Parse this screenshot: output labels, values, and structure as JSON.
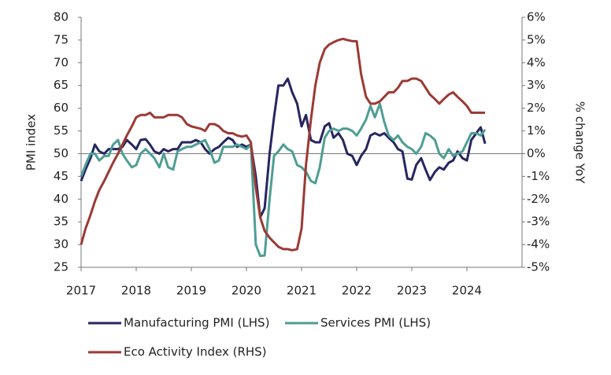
{
  "chart_data": {
    "type": "line",
    "y_label": "PMI index",
    "y2_label": "% change YoY",
    "x": [
      2017.0,
      2017.08,
      2017.17,
      2017.25,
      2017.33,
      2017.42,
      2017.5,
      2017.58,
      2017.67,
      2017.75,
      2017.83,
      2017.92,
      2018.0,
      2018.08,
      2018.17,
      2018.25,
      2018.33,
      2018.42,
      2018.5,
      2018.58,
      2018.67,
      2018.75,
      2018.83,
      2018.92,
      2019.0,
      2019.08,
      2019.17,
      2019.25,
      2019.33,
      2019.42,
      2019.5,
      2019.58,
      2019.67,
      2019.75,
      2019.83,
      2019.92,
      2020.0,
      2020.08,
      2020.17,
      2020.25,
      2020.33,
      2020.42,
      2020.5,
      2020.58,
      2020.67,
      2020.75,
      2020.83,
      2020.92,
      2021.0,
      2021.08,
      2021.17,
      2021.25,
      2021.33,
      2021.42,
      2021.5,
      2021.58,
      2021.67,
      2021.75,
      2021.83,
      2021.92,
      2022.0,
      2022.08,
      2022.17,
      2022.25,
      2022.33,
      2022.42,
      2022.5,
      2022.58,
      2022.67,
      2022.75,
      2022.83,
      2022.92,
      2023.0,
      2023.08,
      2023.17,
      2023.25,
      2023.33,
      2023.42,
      2023.5,
      2023.58,
      2023.67,
      2023.75,
      2023.83,
      2023.92,
      2024.0,
      2024.08,
      2024.17,
      2024.25,
      2024.33
    ],
    "series": [
      {
        "name": "Manufacturing PMI (LHS)",
        "color": "#262660",
        "axis": "y",
        "values": [
          44,
          46.5,
          49,
          52,
          50.5,
          50,
          51,
          51,
          51,
          51.5,
          53,
          52,
          51,
          53,
          53.2,
          52,
          50.5,
          50,
          51,
          50.5,
          51,
          51,
          52.5,
          52.5,
          52.5,
          53,
          52.5,
          51,
          50,
          51,
          51.5,
          52.5,
          53.5,
          53,
          51.5,
          52,
          51.5,
          52,
          45,
          36,
          38,
          50,
          58,
          65,
          65,
          66.5,
          63.5,
          61,
          56,
          58.5,
          53,
          52.5,
          52.5,
          56,
          56.7,
          53.5,
          54.5,
          53,
          50,
          49.5,
          47.5,
          49.5,
          51,
          54,
          54.5,
          54,
          54.5,
          53.5,
          52.5,
          51,
          50.5,
          44.5,
          44.3,
          47.5,
          49,
          46.5,
          44.2,
          46,
          47,
          46.5,
          48,
          48.5,
          50.5,
          49,
          48.5,
          53,
          54.5,
          55.8,
          52.2
        ]
      },
      {
        "name": "Services PMI (LHS)",
        "color": "#4e9e94",
        "axis": "y",
        "values": [
          45,
          47.5,
          50,
          50,
          48.5,
          49.5,
          49.5,
          52,
          53,
          50,
          48.5,
          47,
          47.5,
          50,
          51,
          50,
          49,
          47,
          50,
          47,
          46.5,
          50.5,
          51,
          51.5,
          51.5,
          52,
          52.5,
          53,
          51,
          48,
          48.5,
          51.5,
          51.5,
          51.5,
          52,
          51.5,
          51,
          52,
          30,
          27.5,
          27.6,
          40,
          49.5,
          50.5,
          52,
          51,
          50.5,
          47.5,
          47,
          46,
          44,
          43.5,
          47,
          53.5,
          55,
          55.5,
          55,
          55.5,
          55.5,
          55,
          54,
          55.5,
          57.5,
          60.5,
          58,
          61,
          57,
          54,
          53,
          54,
          52.5,
          51.5,
          51,
          50,
          51.5,
          54.5,
          54,
          53,
          50,
          49,
          51,
          49.5,
          50,
          50.5,
          52.5,
          54.5,
          54.5,
          54,
          55.3
        ]
      },
      {
        "name": "Eco Activity Index (RHS)",
        "color": "#9b3a35",
        "axis": "y2",
        "values": [
          -4,
          -3.3,
          -2.7,
          -2.1,
          -1.6,
          -1.2,
          -0.8,
          -0.4,
          0,
          0.4,
          0.8,
          1.2,
          1.6,
          1.7,
          1.7,
          1.8,
          1.6,
          1.6,
          1.6,
          1.7,
          1.7,
          1.7,
          1.6,
          1.3,
          1.2,
          1.15,
          1.1,
          1.0,
          1.3,
          1.3,
          1.2,
          1.0,
          0.9,
          0.9,
          0.8,
          0.75,
          0.8,
          0.5,
          -1.5,
          -2.8,
          -3.4,
          -3.7,
          -3.9,
          -4.1,
          -4.2,
          -4.2,
          -4.25,
          -4.2,
          -3.3,
          -0.5,
          1.5,
          3.0,
          4.0,
          4.6,
          4.8,
          4.9,
          5.0,
          5.05,
          5.0,
          4.95,
          4.95,
          3.5,
          2.5,
          2.2,
          2.2,
          2.3,
          2.5,
          2.7,
          2.7,
          2.9,
          3.2,
          3.2,
          3.3,
          3.3,
          3.2,
          2.9,
          2.6,
          2.4,
          2.2,
          2.4,
          2.6,
          2.7,
          2.5,
          2.3,
          2.1,
          1.8,
          1.8,
          1.8,
          1.8
        ]
      }
    ],
    "xlim": [
      2017,
      2025
    ],
    "xticks": [
      2017,
      2018,
      2019,
      2020,
      2021,
      2022,
      2023,
      2024
    ],
    "ylim": [
      25,
      80
    ],
    "yticks": [
      25,
      30,
      35,
      40,
      45,
      50,
      55,
      60,
      65,
      70,
      75,
      80
    ],
    "y2lim": [
      -5,
      6
    ],
    "y2ticks": [
      {
        "value": -5,
        "label": "-5%"
      },
      {
        "value": -4,
        "label": "-4%"
      },
      {
        "value": -3,
        "label": "-3%"
      },
      {
        "value": -2,
        "label": "-2%"
      },
      {
        "value": -1,
        "label": "-1%"
      },
      {
        "value": 0,
        "label": "0%"
      },
      {
        "value": 1,
        "label": "1%"
      },
      {
        "value": 2,
        "label": "2%"
      },
      {
        "value": 3,
        "label": "3%"
      },
      {
        "value": 4,
        "label": "4%"
      },
      {
        "value": 5,
        "label": "5%"
      },
      {
        "value": 6,
        "label": "6%"
      }
    ],
    "grid": false,
    "legend": "bottom"
  }
}
